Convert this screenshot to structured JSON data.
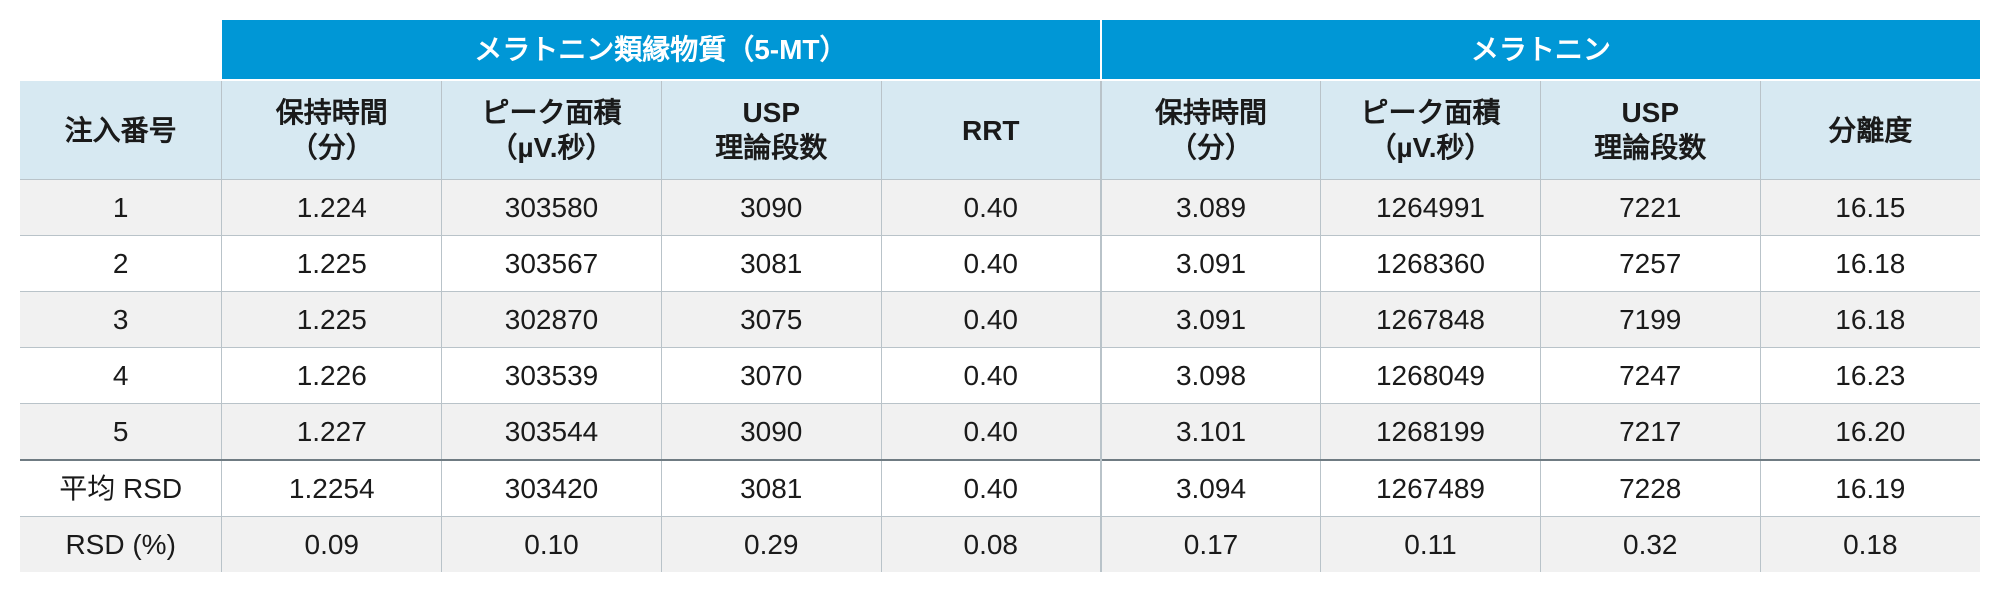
{
  "table": {
    "colors": {
      "group_header_bg": "#0097d6",
      "group_header_text": "#ffffff",
      "sub_header_bg": "#d7e9f2",
      "row_alt_bg": "#f1f1f1",
      "row_bg": "#ffffff",
      "grid_color": "#b9c3c9",
      "summary_divider": "#6f7b82",
      "text_color": "#1a1a1a"
    },
    "typography": {
      "font_size_pt": 21,
      "header_weight": 700,
      "cell_weight": 400
    },
    "layout": {
      "first_col_width_pct": 10.3,
      "other_col_width_pct": 11.2125,
      "left_group_span": 4,
      "right_group_span": 4
    },
    "groupHeaders": {
      "left": "メラトニン類縁物質（5-MT）",
      "right": "メラトニン"
    },
    "columns": [
      "注入番号",
      "保持時間\n（分）",
      "ピーク面積\n（µV.秒）",
      "USP\n理論段数",
      "RRT",
      "保持時間\n（分）",
      "ピーク面積\n（µV.秒）",
      "USP\n理論段数",
      "分離度"
    ],
    "rows": [
      [
        "1",
        "1.224",
        "303580",
        "3090",
        "0.40",
        "3.089",
        "1264991",
        "7221",
        "16.15"
      ],
      [
        "2",
        "1.225",
        "303567",
        "3081",
        "0.40",
        "3.091",
        "1268360",
        "7257",
        "16.18"
      ],
      [
        "3",
        "1.225",
        "302870",
        "3075",
        "0.40",
        "3.091",
        "1267848",
        "7199",
        "16.18"
      ],
      [
        "4",
        "1.226",
        "303539",
        "3070",
        "0.40",
        "3.098",
        "1268049",
        "7247",
        "16.23"
      ],
      [
        "5",
        "1.227",
        "303544",
        "3090",
        "0.40",
        "3.101",
        "1268199",
        "7217",
        "16.20"
      ]
    ],
    "summary": [
      [
        "平均 RSD",
        "1.2254",
        "303420",
        "3081",
        "0.40",
        "3.094",
        "1267489",
        "7228",
        "16.19"
      ],
      [
        "RSD (%)",
        "0.09",
        "0.10",
        "0.29",
        "0.08",
        "0.17",
        "0.11",
        "0.32",
        "0.18"
      ]
    ]
  }
}
